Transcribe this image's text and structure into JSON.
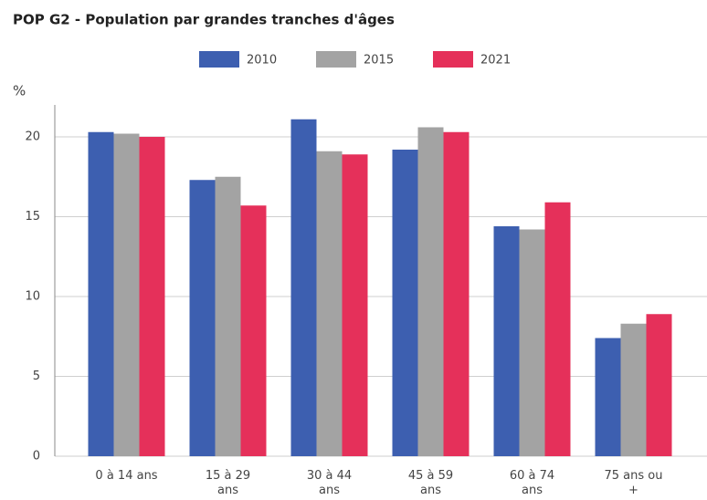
{
  "chart_data": {
    "type": "bar",
    "title": "POP G2 - Population par grandes tranches d'âges",
    "y_label": "%",
    "categories": [
      "0 à 14 ans",
      "15 à 29 ans",
      "30 à 44 ans",
      "45 à 59 ans",
      "60 à 74 ans",
      "75 ans ou +"
    ],
    "series": [
      {
        "name": "2010",
        "color": "#3d5fb0",
        "values": [
          20.3,
          17.3,
          21.1,
          19.2,
          14.4,
          7.4
        ]
      },
      {
        "name": "2015",
        "color": "#a3a3a3",
        "values": [
          20.2,
          17.5,
          19.1,
          20.6,
          14.2,
          8.3
        ]
      },
      {
        "name": "2021",
        "color": "#e5305a",
        "values": [
          20.0,
          15.7,
          18.9,
          20.3,
          15.9,
          8.9
        ]
      }
    ],
    "ylim": [
      0,
      22
    ],
    "yticks": [
      0,
      5,
      10,
      15,
      20
    ],
    "grid": true,
    "legend": "top"
  }
}
